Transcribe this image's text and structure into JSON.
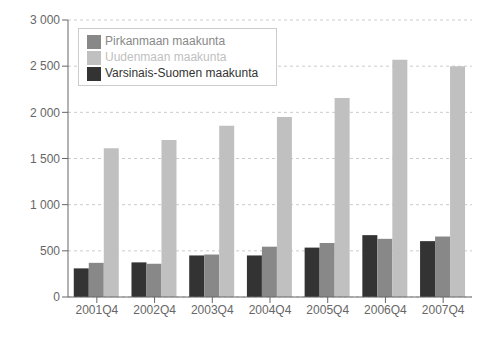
{
  "chart_data": {
    "type": "bar",
    "categories": [
      "2001Q4",
      "2002Q4",
      "2003Q4",
      "2004Q4",
      "2005Q4",
      "2006Q4",
      "2007Q4"
    ],
    "series": [
      {
        "name": "Varsinais-Suomen maakunta",
        "color": "#333333",
        "values": [
          310,
          375,
          450,
          450,
          535,
          670,
          605
        ]
      },
      {
        "name": "Pirkanmaan maakunta",
        "color": "#888888",
        "values": [
          370,
          360,
          460,
          545,
          585,
          630,
          655
        ]
      },
      {
        "name": "Uudenmaan maakunta",
        "color": "#c0c0c0",
        "values": [
          1610,
          1700,
          1855,
          1950,
          2155,
          2570,
          2500
        ]
      }
    ],
    "ylim": [
      0,
      3000
    ],
    "yticks": [
      0,
      500,
      {
        "value": 1000,
        "label": "1 000"
      },
      {
        "value": 1500,
        "label": "1 500"
      },
      {
        "value": 2000,
        "label": "2 000"
      },
      {
        "value": 2500,
        "label": "2 500"
      },
      {
        "value": 3000,
        "label": "3 000"
      }
    ],
    "grid": true,
    "legend": "upper left"
  }
}
